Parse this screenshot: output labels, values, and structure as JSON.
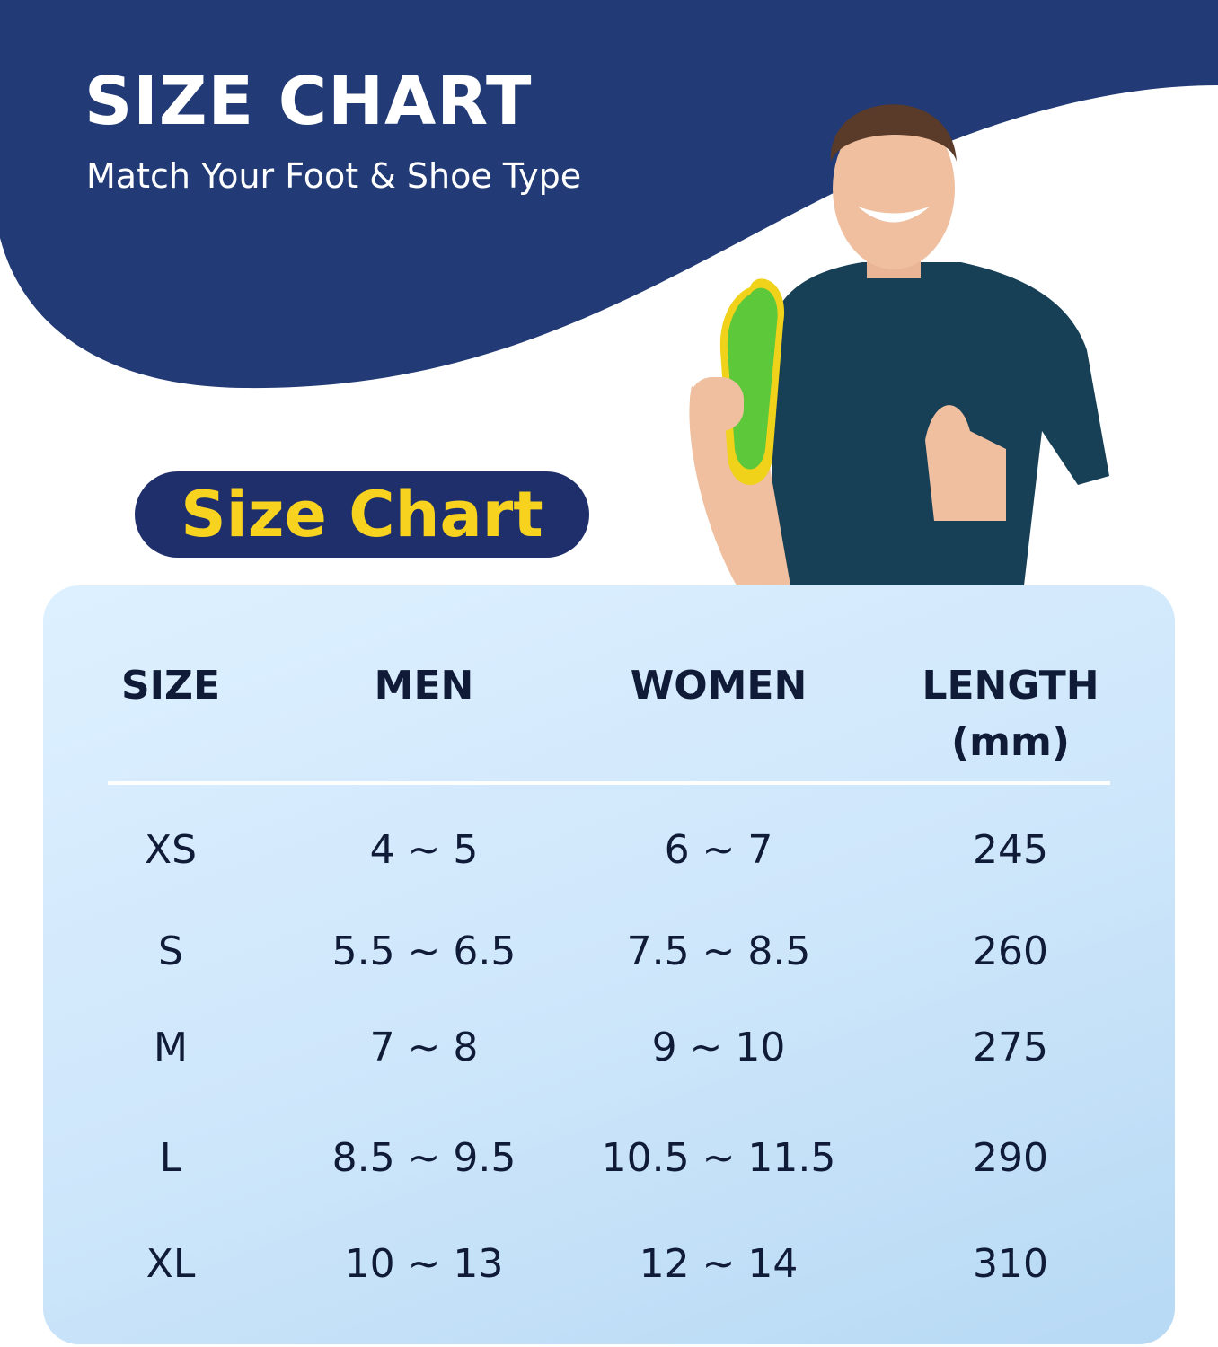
{
  "header": {
    "title": "SIZE CHART",
    "subtitle": "Match Your Foot & Shoe Type"
  },
  "badge": {
    "label": "Size Chart"
  },
  "colors": {
    "navy": "#223a75",
    "badge_bg": "#1f2f6b",
    "badge_text": "#f7d21f",
    "table_text": "#101b38",
    "insole": "#5cc83a"
  },
  "table": {
    "headers": [
      "SIZE",
      "MEN",
      "WOMEN",
      "LENGTH",
      "(mm)"
    ],
    "rows": [
      [
        "XS",
        "4 ~ 5",
        "6 ~ 7",
        "245"
      ],
      [
        "S",
        "5.5 ~ 6.5",
        "7.5 ~ 8.5",
        "260"
      ],
      [
        "M",
        "7 ~ 8",
        "9 ~ 10",
        "275"
      ],
      [
        "L",
        "8.5 ~ 9.5",
        "10.5 ~ 11.5",
        "290"
      ],
      [
        "XL",
        "10 ~ 13",
        "12 ~ 14",
        "310"
      ]
    ]
  }
}
